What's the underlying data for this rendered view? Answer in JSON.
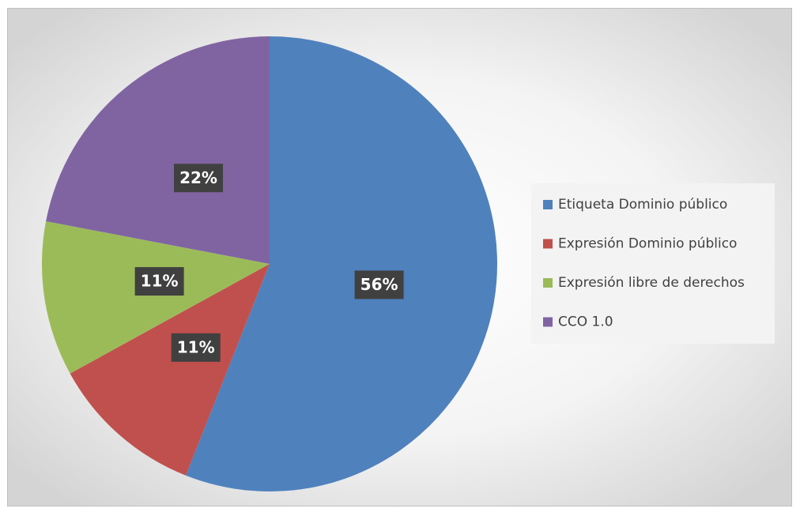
{
  "chart_data": {
    "type": "pie",
    "categories": [
      "Etiqueta Dominio público",
      "Expresión Dominio público",
      "Expresión libre de derechos",
      "CCO 1.0"
    ],
    "values": [
      56,
      11,
      11,
      22
    ],
    "value_labels": [
      "56%",
      "11%",
      "11%",
      "22%"
    ],
    "colors": [
      "#4f81bd",
      "#c0504d",
      "#9bbb59",
      "#8064a2"
    ],
    "legend": "right"
  }
}
